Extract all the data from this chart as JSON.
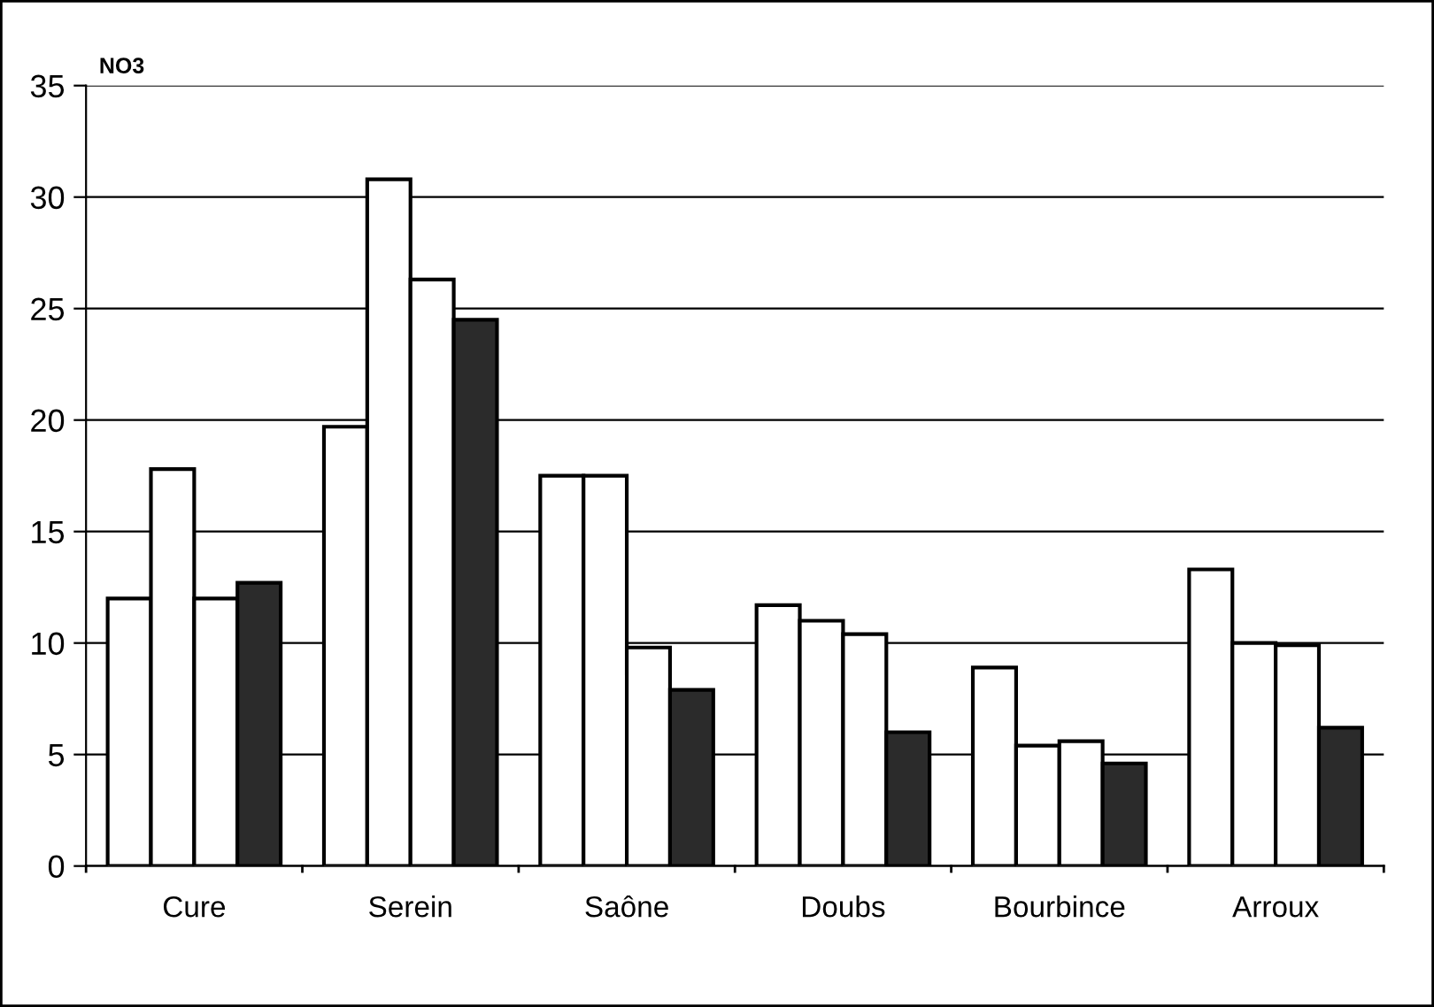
{
  "chart_data": {
    "type": "bar",
    "ylabel": "NO3",
    "categories": [
      "Cure",
      "Serein",
      "Saône",
      "Doubs",
      "Bourbince",
      "Arroux"
    ],
    "series": [
      {
        "color": "#ffffff",
        "values": [
          12.0,
          19.7,
          17.5,
          11.7,
          8.9,
          13.3
        ]
      },
      {
        "color": "#ffffff",
        "values": [
          17.8,
          30.8,
          17.5,
          11.0,
          5.4,
          10.0
        ]
      },
      {
        "color": "#ffffff",
        "values": [
          12.0,
          26.3,
          9.8,
          10.4,
          5.6,
          9.9
        ]
      },
      {
        "color": "#2b2b2b",
        "values": [
          12.7,
          24.5,
          7.9,
          6.0,
          4.6,
          6.2
        ]
      }
    ],
    "ylim": [
      0,
      35
    ],
    "yticks": [
      0,
      5,
      10,
      15,
      20,
      25,
      30,
      35
    ],
    "grid": "y",
    "legend": false
  }
}
